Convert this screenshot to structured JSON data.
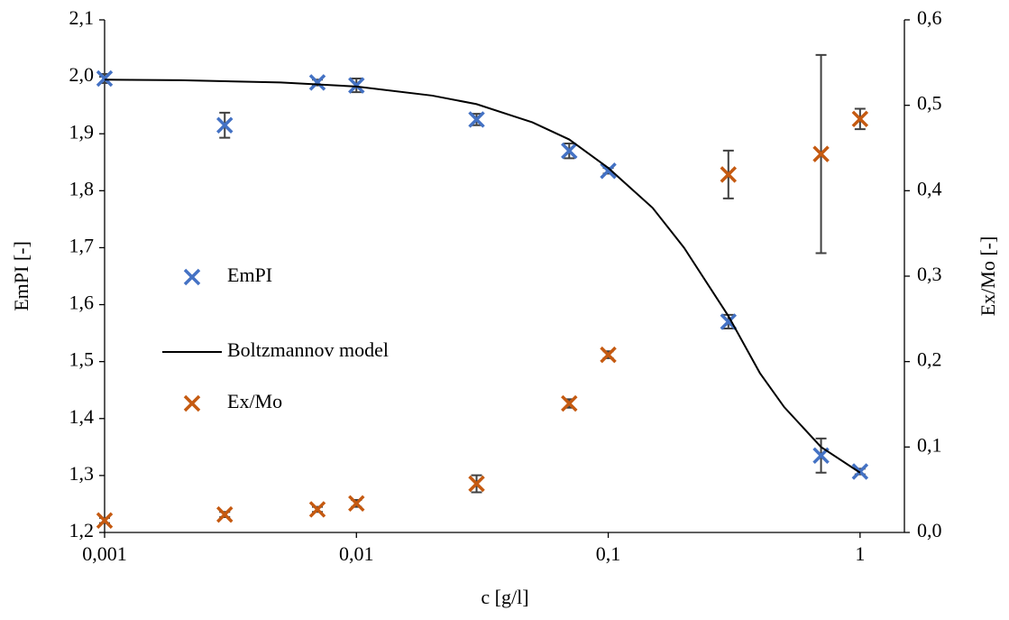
{
  "chart_data": {
    "type": "scatter",
    "xlabel": "c [g/l]",
    "ylabel": "EmPI [-]",
    "y2label": "Ex/Mo [-]",
    "xscale": "log",
    "xlim": [
      0.001,
      1.5
    ],
    "xticks": [
      {
        "value": 0.001,
        "label": "0,001"
      },
      {
        "value": 0.01,
        "label": "0,01"
      },
      {
        "value": 0.1,
        "label": "0,1"
      },
      1
    ],
    "ylim": [
      1.2,
      2.1
    ],
    "yticks": [
      {
        "value": 1.2,
        "label": "1,2"
      },
      {
        "value": 1.3,
        "label": "1,3"
      },
      {
        "value": 1.4,
        "label": "1,4"
      },
      {
        "value": 1.5,
        "label": "1,5"
      },
      {
        "value": 1.6,
        "label": "1,6"
      },
      {
        "value": 1.7,
        "label": "1,7"
      },
      {
        "value": 1.8,
        "label": "1,8"
      },
      {
        "value": 1.9,
        "label": "1,9"
      },
      {
        "value": 2.0,
        "label": "2,0"
      },
      {
        "value": 2.1,
        "label": "2,1"
      }
    ],
    "y2lim": [
      0,
      0.6
    ],
    "y2ticks": [
      {
        "value": 0,
        "label": "0,0"
      },
      {
        "value": 0.1,
        "label": "0,1"
      },
      {
        "value": 0.2,
        "label": "0,2"
      },
      {
        "value": 0.3,
        "label": "0,3"
      },
      {
        "value": 0.4,
        "label": "0,4"
      },
      {
        "value": 0.5,
        "label": "0,5"
      },
      {
        "value": 0.6,
        "label": "0,6"
      }
    ],
    "legend": "center-left",
    "series": [
      {
        "name": "EmPI",
        "color": "#4472c4",
        "marker": "x",
        "x": [
          0.001,
          0.003,
          0.007,
          0.01,
          0.03,
          0.07,
          0.1,
          0.3,
          0.7,
          1
        ],
        "values": [
          1.997,
          1.915,
          1.99,
          1.985,
          1.925,
          1.87,
          1.835,
          1.57,
          1.335,
          1.307
        ],
        "errors": [
          0.008,
          0.022,
          0.005,
          0.012,
          0.01,
          0.013,
          0.005,
          0.012,
          0.03,
          0.005
        ]
      },
      {
        "name": "Boltzmannov model",
        "color": "#000000",
        "marker": "line",
        "x": [
          0.001,
          0.002,
          0.005,
          0.01,
          0.02,
          0.03,
          0.05,
          0.07,
          0.1,
          0.15,
          0.2,
          0.3,
          0.4,
          0.5,
          0.7,
          1
        ],
        "values": [
          1.995,
          1.994,
          1.99,
          1.983,
          1.967,
          1.952,
          1.92,
          1.89,
          1.84,
          1.77,
          1.7,
          1.58,
          1.48,
          1.42,
          1.35,
          1.305
        ]
      },
      {
        "name": "Ex/Mo",
        "color": "#c55a11",
        "marker": "x",
        "axis": "y2",
        "x": [
          0.001,
          0.003,
          0.007,
          0.01,
          0.03,
          0.07,
          0.1,
          0.3,
          0.7,
          1
        ],
        "values": [
          0.014,
          0.021,
          0.027,
          0.034,
          0.057,
          0.151,
          0.208,
          0.419,
          0.443,
          0.484
        ],
        "errors": [
          0.003,
          0.003,
          0.003,
          0.004,
          0.01,
          0.005,
          0.004,
          0.028,
          0.116,
          0.012
        ]
      }
    ]
  }
}
